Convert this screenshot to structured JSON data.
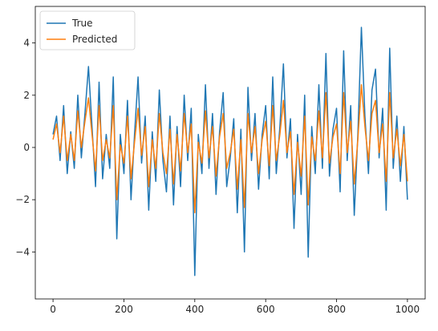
{
  "chart_data": {
    "type": "line",
    "title": "",
    "xlabel": "",
    "ylabel": "",
    "xlim": [
      -50,
      1050
    ],
    "ylim": [
      -5.8,
      5.4
    ],
    "xticks": [
      0,
      200,
      400,
      600,
      800,
      1000
    ],
    "yticks": [
      -4,
      -2,
      0,
      2,
      4
    ],
    "grid": false,
    "legend_position": "top-left",
    "series": [
      {
        "name": "True",
        "color": "#1f77b4",
        "x": [
          0,
          10,
          20,
          30,
          40,
          50,
          60,
          70,
          80,
          90,
          100,
          110,
          120,
          130,
          140,
          150,
          160,
          170,
          180,
          190,
          200,
          210,
          220,
          230,
          240,
          250,
          260,
          270,
          280,
          290,
          300,
          310,
          320,
          330,
          340,
          350,
          360,
          370,
          380,
          390,
          400,
          410,
          420,
          430,
          440,
          450,
          460,
          470,
          480,
          490,
          500,
          510,
          520,
          530,
          540,
          550,
          560,
          570,
          580,
          590,
          600,
          610,
          620,
          630,
          640,
          650,
          660,
          670,
          680,
          690,
          700,
          710,
          720,
          730,
          740,
          750,
          760,
          770,
          780,
          790,
          800,
          810,
          820,
          830,
          840,
          850,
          860,
          870,
          880,
          890,
          900,
          910,
          920,
          930,
          940,
          950,
          960,
          970,
          980,
          990,
          1000
        ],
        "y": [
          0.5,
          1.2,
          -0.5,
          1.6,
          -1.0,
          0.6,
          -0.8,
          2.0,
          -0.4,
          1.3,
          3.1,
          0.8,
          -1.5,
          2.5,
          -1.2,
          0.5,
          -0.8,
          2.7,
          -3.5,
          0.5,
          -1.0,
          1.8,
          -2.0,
          0.5,
          2.7,
          -0.6,
          1.2,
          -2.4,
          0.6,
          -1.3,
          2.2,
          -0.5,
          -1.7,
          1.2,
          -2.2,
          0.8,
          -1.5,
          2.0,
          -0.5,
          1.5,
          -4.9,
          0.5,
          -1.0,
          2.4,
          -0.8,
          1.3,
          -1.8,
          0.6,
          2.1,
          -1.5,
          -0.4,
          1.1,
          -2.5,
          0.7,
          -4.0,
          2.3,
          -0.5,
          1.3,
          -1.6,
          0.5,
          1.6,
          -1.2,
          2.7,
          -1.0,
          0.8,
          3.2,
          -0.4,
          1.1,
          -3.1,
          0.5,
          -1.8,
          2.0,
          -4.2,
          0.8,
          -1.0,
          2.4,
          -0.8,
          3.6,
          -1.1,
          0.7,
          1.5,
          -1.7,
          3.7,
          -0.5,
          1.6,
          -2.6,
          0.5,
          4.6,
          1.2,
          -1.0,
          2.2,
          3.0,
          -0.4,
          1.5,
          -2.4,
          3.8,
          -0.8,
          1.2,
          -1.3,
          0.8,
          -2.0
        ]
      },
      {
        "name": "Predicted",
        "color": "#ff7f0e",
        "x": [
          0,
          10,
          20,
          30,
          40,
          50,
          60,
          70,
          80,
          90,
          100,
          110,
          120,
          130,
          140,
          150,
          160,
          170,
          180,
          190,
          200,
          210,
          220,
          230,
          240,
          250,
          260,
          270,
          280,
          290,
          300,
          310,
          320,
          330,
          340,
          350,
          360,
          370,
          380,
          390,
          400,
          410,
          420,
          430,
          440,
          450,
          460,
          470,
          480,
          490,
          500,
          510,
          520,
          530,
          540,
          550,
          560,
          570,
          580,
          590,
          600,
          610,
          620,
          630,
          640,
          650,
          660,
          670,
          680,
          690,
          700,
          710,
          720,
          730,
          740,
          750,
          760,
          770,
          780,
          790,
          800,
          810,
          820,
          830,
          840,
          850,
          860,
          870,
          880,
          890,
          900,
          910,
          920,
          930,
          940,
          950,
          960,
          970,
          980,
          990,
          1000
        ],
        "y": [
          0.3,
          0.9,
          -0.2,
          1.2,
          -0.5,
          0.5,
          -0.5,
          1.4,
          0.0,
          1.0,
          1.9,
          0.5,
          -0.9,
          1.6,
          -0.5,
          0.3,
          -0.4,
          1.6,
          -2.0,
          0.1,
          -0.6,
          1.2,
          -1.2,
          0.2,
          1.5,
          -0.3,
          0.8,
          -1.5,
          0.3,
          -0.8,
          1.3,
          -0.2,
          -1.0,
          0.7,
          -1.4,
          0.5,
          -0.9,
          1.3,
          -0.2,
          0.9,
          -2.5,
          0.2,
          -0.6,
          1.4,
          -0.4,
          0.8,
          -1.1,
          0.4,
          1.3,
          -0.8,
          -0.2,
          0.7,
          -1.6,
          0.3,
          -2.3,
          1.3,
          -0.2,
          0.8,
          -1.0,
          0.3,
          1.0,
          -0.7,
          1.6,
          -0.5,
          0.5,
          1.8,
          -0.2,
          0.6,
          -1.8,
          0.2,
          -1.1,
          1.2,
          -2.2,
          0.4,
          -0.5,
          1.4,
          -0.4,
          2.1,
          -0.6,
          0.4,
          0.9,
          -1.0,
          2.1,
          -0.2,
          1.0,
          -1.4,
          0.3,
          2.4,
          0.8,
          -0.5,
          1.3,
          1.8,
          -0.2,
          0.9,
          -1.3,
          2.1,
          -0.4,
          0.7,
          -0.7,
          0.5,
          -1.3
        ]
      }
    ]
  }
}
